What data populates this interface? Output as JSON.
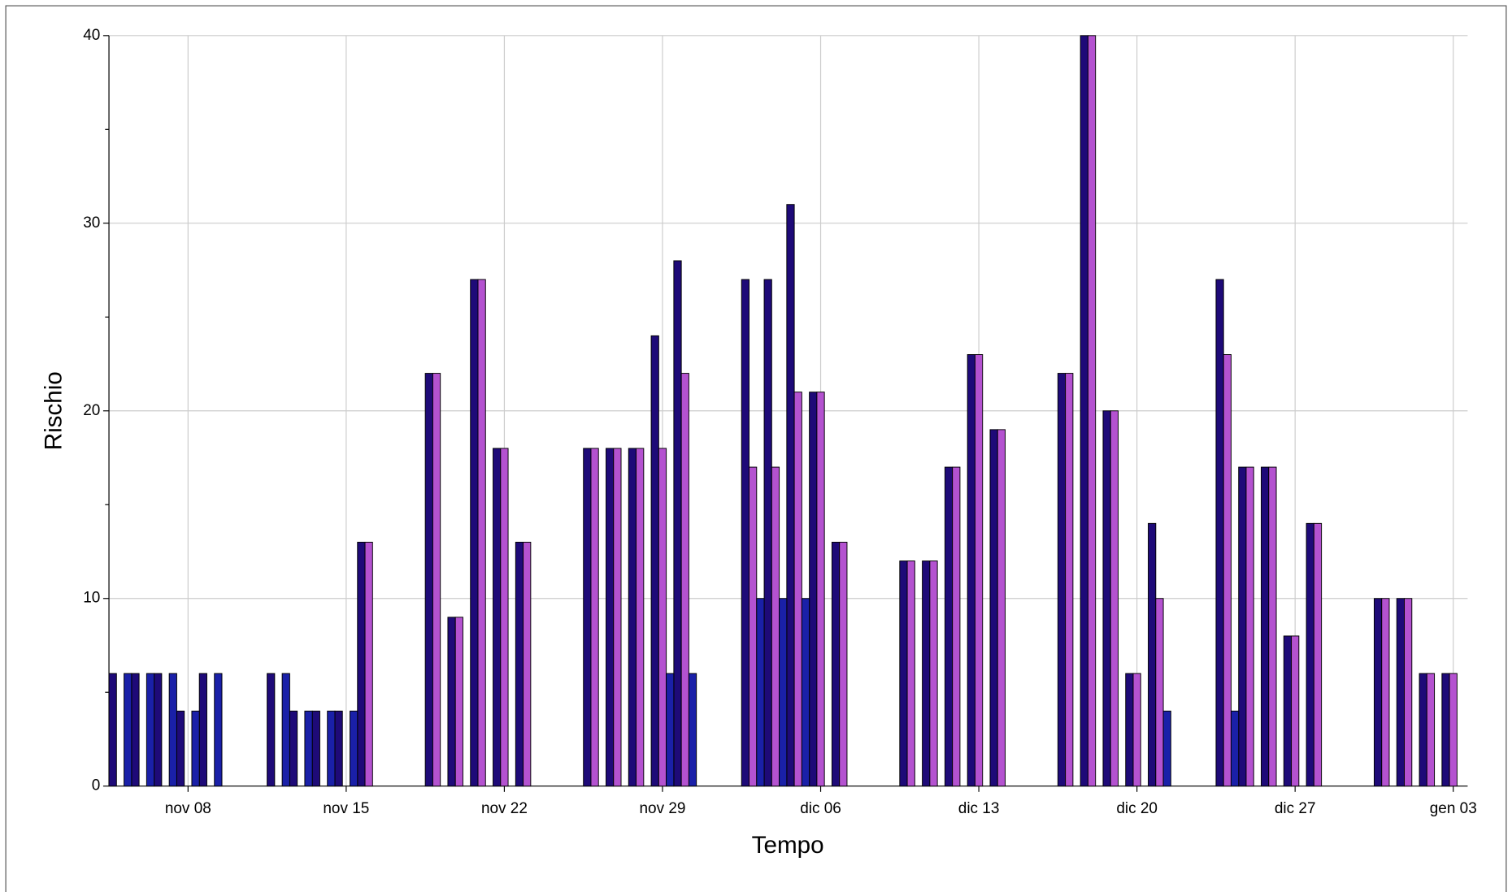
{
  "chart_data": {
    "type": "bar",
    "x_label": "Tempo",
    "y_label": "Rischio",
    "categories": [
      null,
      null,
      null,
      "nov 08",
      null,
      null,
      null,
      null,
      null,
      null,
      "nov 15",
      null,
      null,
      null,
      null,
      null,
      null,
      "nov 22",
      null,
      null,
      null,
      null,
      null,
      null,
      "nov 29",
      null,
      null,
      null,
      null,
      null,
      null,
      "dic 06",
      null,
      null,
      null,
      null,
      null,
      null,
      "dic 13",
      null,
      null,
      null,
      null,
      null,
      null,
      "dic 20",
      null,
      null,
      null,
      null,
      null,
      null,
      "dic 27",
      null,
      null,
      null,
      null,
      null,
      null,
      "gen 03"
    ],
    "series": [
      {
        "color": "#1e0a78",
        "values": [
          6,
          6,
          6,
          4,
          6,
          0,
          0,
          6,
          4,
          4,
          4,
          13,
          0,
          0,
          22,
          9,
          27,
          18,
          13,
          0,
          0,
          18,
          18,
          18,
          24,
          28,
          0,
          0,
          27,
          27,
          31,
          21,
          13,
          0,
          0,
          12,
          12,
          17,
          23,
          19,
          0,
          0,
          22,
          40,
          20,
          6,
          14,
          0,
          0,
          27,
          17,
          17,
          8,
          14,
          0,
          0,
          10,
          10,
          6,
          6
        ]
      },
      {
        "color": "#b452d0",
        "values": [
          0,
          0,
          0,
          0,
          0,
          0,
          0,
          0,
          0,
          0,
          0,
          13,
          0,
          0,
          22,
          9,
          27,
          18,
          13,
          0,
          0,
          18,
          18,
          18,
          18,
          22,
          0,
          0,
          17,
          17,
          21,
          21,
          13,
          0,
          0,
          12,
          12,
          17,
          23,
          19,
          0,
          0,
          22,
          40,
          20,
          6,
          10,
          0,
          0,
          23,
          17,
          17,
          8,
          14,
          0,
          0,
          10,
          10,
          6,
          6
        ]
      },
      {
        "color": "#1a20a8",
        "values": [
          6,
          6,
          6,
          4,
          6,
          0,
          0,
          6,
          4,
          4,
          4,
          0,
          0,
          0,
          0,
          0,
          0,
          0,
          0,
          0,
          0,
          0,
          0,
          0,
          6,
          6,
          0,
          0,
          10,
          10,
          10,
          0,
          0,
          0,
          0,
          0,
          0,
          0,
          0,
          0,
          0,
          0,
          0,
          0,
          0,
          0,
          4,
          0,
          0,
          4,
          0,
          0,
          0,
          0,
          0,
          0,
          0,
          0,
          0,
          0
        ]
      }
    ],
    "ylim": [
      0,
      40
    ],
    "yticks": [
      0,
      10,
      20,
      30,
      40
    ],
    "yminorticks": [
      5,
      15,
      25,
      35
    ],
    "grid": true
  }
}
